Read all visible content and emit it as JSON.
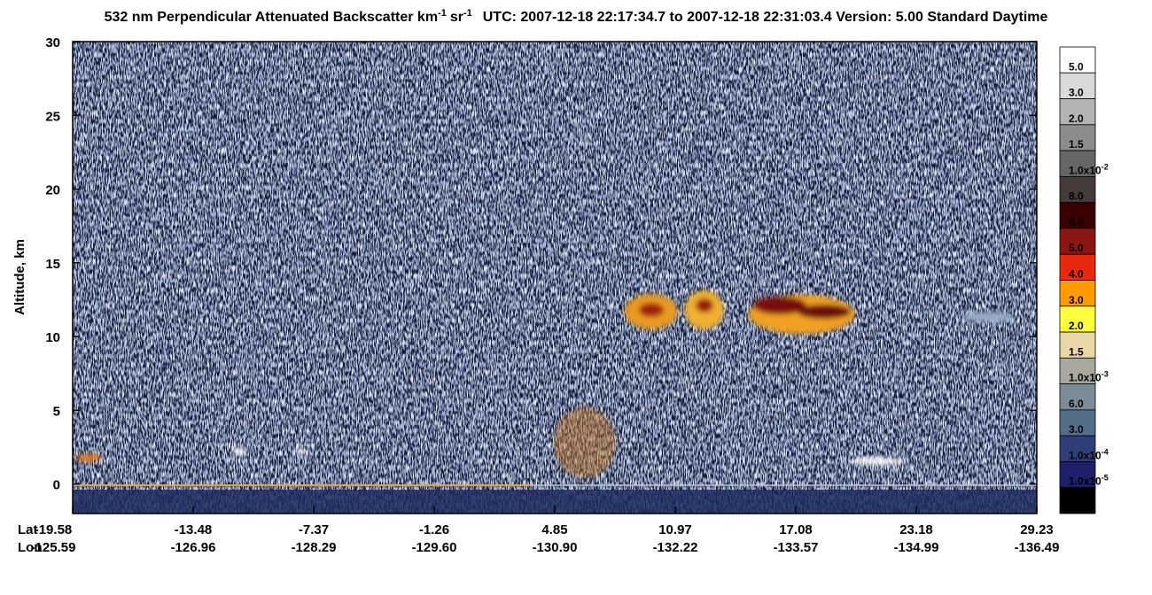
{
  "chart_data": {
    "type": "heatmap",
    "title": {
      "main": "532 nm Perpendicular Attenuated Backscatter km",
      "exp1": "-1",
      "unit2": "sr",
      "exp2": "-1",
      "info": "UTC: 2007-12-18 22:17:34.7 to 2007-12-18 22:31:03.4  Version: 5.00 Standard Daytime"
    },
    "y_label": "Altitude, km",
    "ylim": [
      -2,
      30
    ],
    "yticks": [
      0,
      5,
      10,
      15,
      20,
      25,
      30
    ],
    "x_row_labels": [
      "Lat",
      "Lon"
    ],
    "lat": [
      "-19.58",
      "-13.48",
      "-7.37",
      "-1.26",
      "4.85",
      "10.97",
      "17.08",
      "23.18",
      "29.23"
    ],
    "lon": [
      "-125.59",
      "-126.96",
      "-128.29",
      "-129.60",
      "-130.90",
      "-132.22",
      "-133.57",
      "-134.99",
      "-136.49"
    ],
    "colorbar": {
      "colors": [
        "#ffffff",
        "#d9d9d9",
        "#b3b3b3",
        "#8c8c8c",
        "#666666",
        "#463b3b",
        "#3a0000",
        "#8c1712",
        "#e8290f",
        "#ff9a00",
        "#ffff40",
        "#e8d8a8",
        "#a8a89e",
        "#7b8c98",
        "#546e8a",
        "#2f3e78",
        "#1f1f6c",
        "#000000"
      ],
      "labels": [
        {
          "text": "5.0"
        },
        {
          "text": "3.0"
        },
        {
          "text": "2.0"
        },
        {
          "text": "1.5"
        },
        {
          "text": "1.0x10",
          "sup": "-2"
        },
        {
          "text": "8.0"
        },
        {
          "text": "6.0"
        },
        {
          "text": "5.0"
        },
        {
          "text": "4.0"
        },
        {
          "text": "3.0"
        },
        {
          "text": "2.0"
        },
        {
          "text": "1.5"
        },
        {
          "text": "1.0x10",
          "sup": "-3"
        },
        {
          "text": "6.0"
        },
        {
          "text": "3.0"
        },
        {
          "text": "1.0x10",
          "sup": "-4"
        },
        {
          "text": "1.0x10",
          "sup": "-5"
        }
      ]
    }
  }
}
